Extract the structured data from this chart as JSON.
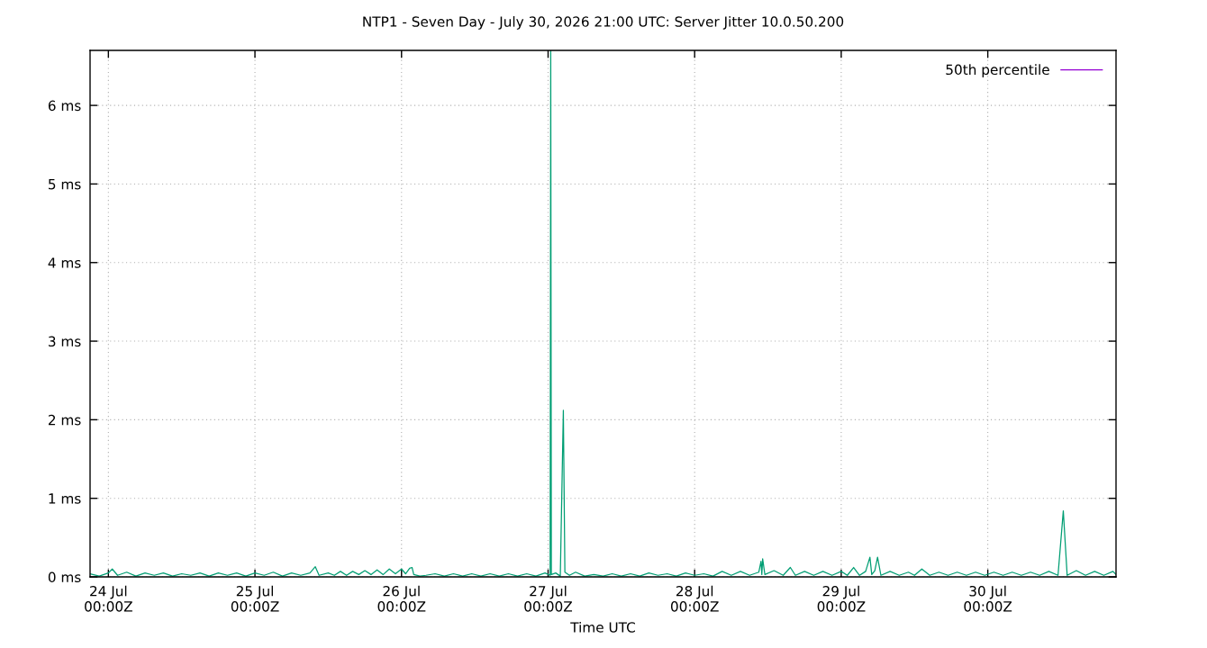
{
  "chart_data": {
    "type": "line",
    "title": "NTP1 - Seven Day - July 30, 2026 21:00 UTC: Server Jitter 10.0.50.200",
    "xlabel": "Time UTC",
    "xlim": [
      "2026-07-23T21:00",
      "2026-07-30T21:00"
    ],
    "xticks": [
      {
        "value": "2026-07-24",
        "label": "24 Jul\n00:00Z"
      },
      {
        "value": "2026-07-25",
        "label": "25 Jul\n00:00Z"
      },
      {
        "value": "2026-07-26",
        "label": "26 Jul\n00:00Z"
      },
      {
        "value": "2026-07-27",
        "label": "27 Jul\n00:00Z"
      },
      {
        "value": "2026-07-28",
        "label": "28 Jul\n00:00Z"
      },
      {
        "value": "2026-07-29",
        "label": "29 Jul\n00:00Z"
      },
      {
        "value": "2026-07-30",
        "label": "30 Jul\n00:00Z"
      }
    ],
    "ylim": [
      0,
      6.7
    ],
    "yticks": [
      {
        "value": 0,
        "label": "0 ms"
      },
      {
        "value": 1,
        "label": "1 ms"
      },
      {
        "value": 2,
        "label": "2 ms"
      },
      {
        "value": 3,
        "label": "3 ms"
      },
      {
        "value": 4,
        "label": "4 ms"
      },
      {
        "value": 5,
        "label": "5 ms"
      },
      {
        "value": 6,
        "label": "6 ms"
      }
    ],
    "grid": true,
    "legend": "top right",
    "line_style": "solid",
    "series": [
      {
        "name": "50th percentile",
        "color": "#9400d3"
      },
      {
        "color": "#009e73",
        "x": [
          "2026-07-23T21:00",
          "2026-07-23T22:30",
          "2026-07-24T00:00",
          "2026-07-24T00:38",
          "2026-07-24T01:30",
          "2026-07-24T03:00",
          "2026-07-24T04:30",
          "2026-07-24T06:00",
          "2026-07-24T07:30",
          "2026-07-24T09:00",
          "2026-07-24T10:30",
          "2026-07-24T12:00",
          "2026-07-24T13:30",
          "2026-07-24T15:00",
          "2026-07-24T16:30",
          "2026-07-24T18:00",
          "2026-07-24T19:30",
          "2026-07-24T21:00",
          "2026-07-24T22:30",
          "2026-07-25T00:00",
          "2026-07-25T01:30",
          "2026-07-25T03:00",
          "2026-07-25T04:30",
          "2026-07-25T06:00",
          "2026-07-25T07:30",
          "2026-07-25T09:00",
          "2026-07-25T09:53",
          "2026-07-25T10:30",
          "2026-07-25T12:00",
          "2026-07-25T13:00",
          "2026-07-25T14:00",
          "2026-07-25T15:00",
          "2026-07-25T16:00",
          "2026-07-25T17:00",
          "2026-07-25T18:00",
          "2026-07-25T19:00",
          "2026-07-25T20:00",
          "2026-07-25T21:00",
          "2026-07-25T22:00",
          "2026-07-25T23:00",
          "2026-07-26T00:00",
          "2026-07-26T00:40",
          "2026-07-26T01:20",
          "2026-07-26T01:44",
          "2026-07-26T02:00",
          "2026-07-26T03:00",
          "2026-07-26T04:00",
          "2026-07-26T05:30",
          "2026-07-26T07:00",
          "2026-07-26T08:30",
          "2026-07-26T10:00",
          "2026-07-26T11:30",
          "2026-07-26T13:00",
          "2026-07-26T14:30",
          "2026-07-26T16:00",
          "2026-07-26T17:30",
          "2026-07-26T19:00",
          "2026-07-26T20:30",
          "2026-07-26T22:00",
          "2026-07-26T23:30",
          "2026-07-27T00:20",
          "2026-07-27T00:26",
          "2026-07-27T00:32",
          "2026-07-27T01:15",
          "2026-07-27T02:00",
          "2026-07-27T02:30",
          "2026-07-27T02:45",
          "2026-07-27T03:30",
          "2026-07-27T04:30",
          "2026-07-27T06:00",
          "2026-07-27T07:30",
          "2026-07-27T09:00",
          "2026-07-27T10:30",
          "2026-07-27T12:00",
          "2026-07-27T13:30",
          "2026-07-27T15:00",
          "2026-07-27T16:30",
          "2026-07-27T18:00",
          "2026-07-27T19:30",
          "2026-07-27T21:00",
          "2026-07-27T22:30",
          "2026-07-28T00:00",
          "2026-07-28T01:30",
          "2026-07-28T03:00",
          "2026-07-28T04:30",
          "2026-07-28T06:00",
          "2026-07-28T07:30",
          "2026-07-28T09:00",
          "2026-07-28T10:30",
          "2026-07-28T10:52",
          "2026-07-28T11:00",
          "2026-07-28T11:08",
          "2026-07-28T11:30",
          "2026-07-28T13:00",
          "2026-07-28T14:30",
          "2026-07-28T15:40",
          "2026-07-28T16:30",
          "2026-07-28T18:00",
          "2026-07-28T19:30",
          "2026-07-28T21:00",
          "2026-07-28T22:30",
          "2026-07-29T00:00",
          "2026-07-29T01:00",
          "2026-07-29T02:02",
          "2026-07-29T03:00",
          "2026-07-29T04:00",
          "2026-07-29T04:42",
          "2026-07-29T05:00",
          "2026-07-29T05:30",
          "2026-07-29T05:57",
          "2026-07-29T06:30",
          "2026-07-29T08:00",
          "2026-07-29T09:30",
          "2026-07-29T11:00",
          "2026-07-29T12:00",
          "2026-07-29T13:12",
          "2026-07-29T14:30",
          "2026-07-29T16:00",
          "2026-07-29T17:30",
          "2026-07-29T19:00",
          "2026-07-29T20:30",
          "2026-07-29T22:00",
          "2026-07-29T23:30",
          "2026-07-30T01:00",
          "2026-07-30T02:30",
          "2026-07-30T04:00",
          "2026-07-30T05:30",
          "2026-07-30T07:00",
          "2026-07-30T08:30",
          "2026-07-30T10:00",
          "2026-07-30T11:30",
          "2026-07-30T12:22",
          "2026-07-30T13:00",
          "2026-07-30T14:30",
          "2026-07-30T16:00",
          "2026-07-30T17:30",
          "2026-07-30T19:00",
          "2026-07-30T20:30",
          "2026-07-30T21:00"
        ],
        "values": [
          0.04,
          0.01,
          0.05,
          0.1,
          0.02,
          0.06,
          0.01,
          0.05,
          0.02,
          0.05,
          0.01,
          0.04,
          0.02,
          0.05,
          0.01,
          0.05,
          0.02,
          0.05,
          0.01,
          0.05,
          0.02,
          0.06,
          0.01,
          0.05,
          0.02,
          0.05,
          0.13,
          0.02,
          0.05,
          0.02,
          0.07,
          0.02,
          0.07,
          0.03,
          0.08,
          0.03,
          0.09,
          0.03,
          0.1,
          0.04,
          0.1,
          0.04,
          0.11,
          0.12,
          0.03,
          0.01,
          0.02,
          0.04,
          0.01,
          0.04,
          0.01,
          0.04,
          0.01,
          0.04,
          0.01,
          0.04,
          0.01,
          0.04,
          0.01,
          0.05,
          0.02,
          6.7,
          0.03,
          0.05,
          0.01,
          2.12,
          0.06,
          0.02,
          0.06,
          0.01,
          0.03,
          0.01,
          0.04,
          0.01,
          0.04,
          0.01,
          0.05,
          0.02,
          0.04,
          0.01,
          0.05,
          0.02,
          0.04,
          0.01,
          0.07,
          0.02,
          0.07,
          0.02,
          0.06,
          0.2,
          0.03,
          0.23,
          0.03,
          0.08,
          0.02,
          0.12,
          0.02,
          0.07,
          0.02,
          0.07,
          0.02,
          0.07,
          0.02,
          0.12,
          0.02,
          0.07,
          0.25,
          0.03,
          0.08,
          0.25,
          0.02,
          0.07,
          0.02,
          0.06,
          0.02,
          0.1,
          0.02,
          0.06,
          0.02,
          0.06,
          0.02,
          0.06,
          0.02,
          0.06,
          0.02,
          0.06,
          0.02,
          0.06,
          0.02,
          0.07,
          0.02,
          0.84,
          0.02,
          0.08,
          0.02,
          0.07,
          0.02,
          0.07,
          0.03
        ]
      }
    ]
  }
}
